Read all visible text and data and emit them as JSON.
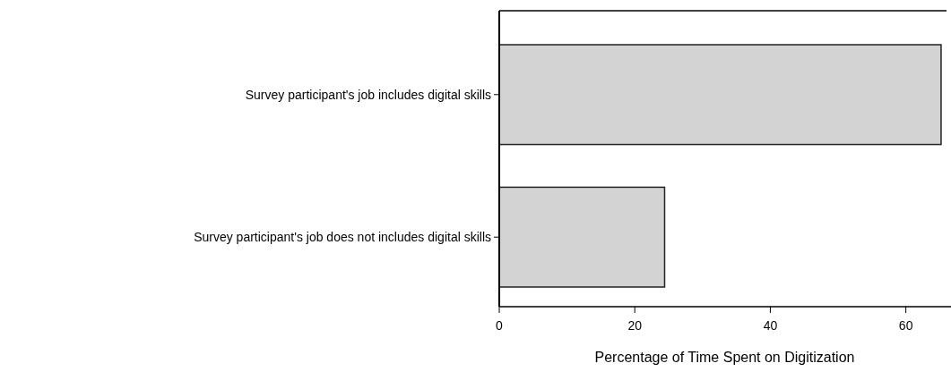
{
  "chart_data": {
    "type": "bar",
    "orientation": "horizontal",
    "xlabel": "Percentage of Time Spent on Digitization",
    "categories": [
      "Survey participant's job includes digital skills",
      "Survey participant's job does not includes digital skills"
    ],
    "values": [
      65.2,
      24.4
    ],
    "color": "#d3d3d3",
    "xlim": [
      0,
      66
    ],
    "xticks": [
      0,
      20,
      40,
      60
    ],
    "grid": false
  }
}
